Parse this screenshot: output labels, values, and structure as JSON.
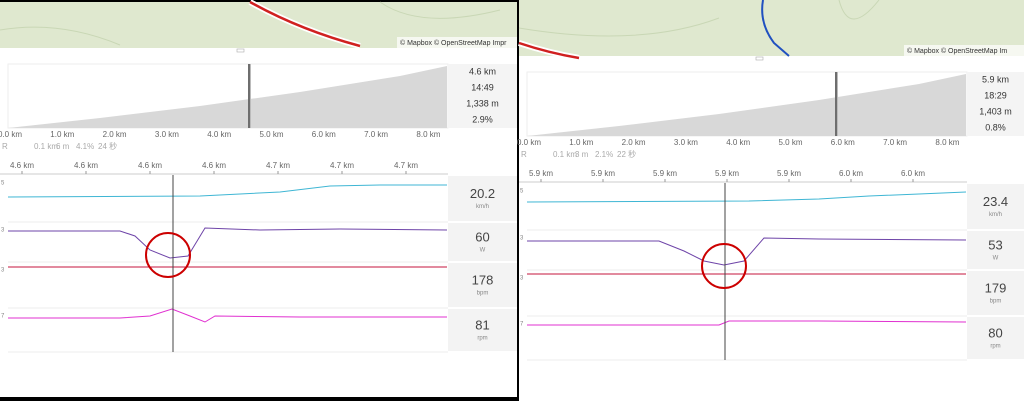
{
  "panels": [
    {
      "map_attribution": "© Mapbox © OpenStreetMap Impr",
      "elevation_axis": [
        "0.0 km",
        "1.0 km",
        "2.0 km",
        "3.0 km",
        "4.0 km",
        "5.0 km",
        "6.0 km",
        "7.0 km",
        "8.0 km"
      ],
      "stats": [
        "4.6 km",
        "14:49",
        "1,338 m",
        "2.9%"
      ],
      "segment": [
        "R",
        "0.1 km",
        "6 m",
        "4.1%",
        "24 秒"
      ],
      "zoom_axis": [
        "4.6 km",
        "4.6 km",
        "4.6 km",
        "4.6 km",
        "4.7 km",
        "4.7 km",
        "4.7 km"
      ],
      "stream_axis": [
        "5",
        "3",
        "3",
        "7"
      ],
      "streams": [
        {
          "value": 20.2,
          "unit": "km/h"
        },
        {
          "value": 60,
          "unit": "W"
        },
        {
          "value": 178,
          "unit": "bpm"
        },
        {
          "value": 81,
          "unit": "rpm"
        }
      ]
    },
    {
      "map_attribution": "© Mapbox © OpenStreetMap Im",
      "elevation_axis": [
        "0.0 km",
        "1.0 km",
        "2.0 km",
        "3.0 km",
        "4.0 km",
        "5.0 km",
        "6.0 km",
        "7.0 km",
        "8.0 km"
      ],
      "stats": [
        "5.9 km",
        "18:29",
        "1,403 m",
        "0.8%"
      ],
      "segment": [
        "R",
        "0.1 km",
        "3 m",
        "2.1%",
        "22 秒"
      ],
      "zoom_axis": [
        "5.9 km",
        "5.9 km",
        "5.9 km",
        "5.9 km",
        "5.9 km",
        "6.0 km",
        "6.0 km"
      ],
      "stream_axis": [
        "5",
        "3",
        "3",
        "7"
      ],
      "streams": [
        {
          "value": 23.4,
          "unit": "km/h"
        },
        {
          "value": 53,
          "unit": "W"
        },
        {
          "value": 179,
          "unit": "bpm"
        },
        {
          "value": 80,
          "unit": "rpm"
        }
      ]
    }
  ]
}
